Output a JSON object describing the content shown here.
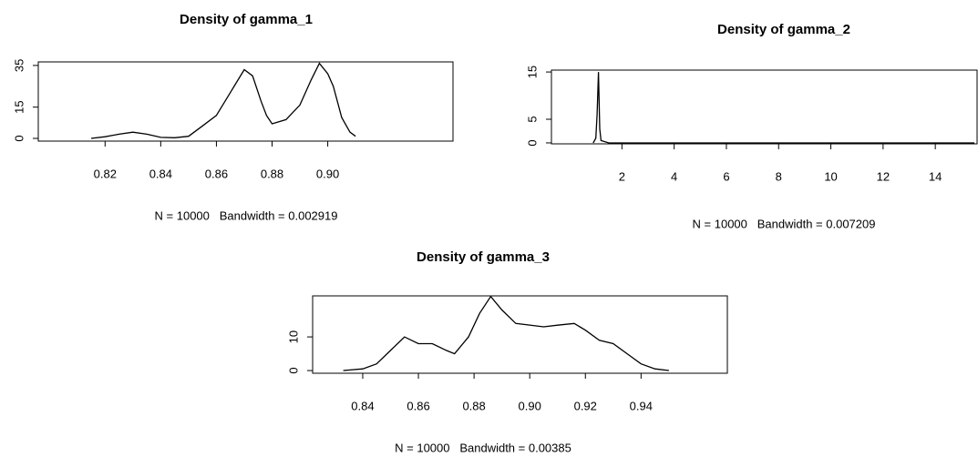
{
  "chart_data": [
    {
      "type": "line",
      "title": "Density of gamma_1",
      "subtitle": "N = 10000   Bandwidth = 0.002919",
      "x": [
        0.815,
        0.82,
        0.825,
        0.83,
        0.835,
        0.84,
        0.845,
        0.85,
        0.855,
        0.86,
        0.865,
        0.87,
        0.873,
        0.876,
        0.878,
        0.88,
        0.885,
        0.89,
        0.894,
        0.897,
        0.9,
        0.902,
        0.905,
        0.908,
        0.91
      ],
      "values": [
        0,
        0.8,
        2,
        3,
        2,
        0.5,
        0.3,
        1,
        6,
        11,
        22,
        33,
        30,
        18,
        11,
        7,
        9,
        16,
        28,
        36,
        31,
        25,
        10,
        3,
        1
      ],
      "color": "#000000",
      "xlim": [
        0.796,
        0.945
      ],
      "ylim": [
        -1.3,
        36.7
      ],
      "xticks": [
        0.82,
        0.84,
        0.86,
        0.88,
        {
          "value": 0.9,
          "label": "0.90"
        }
      ],
      "yticks": [
        0,
        15,
        35
      ]
    },
    {
      "type": "line",
      "title": "Density of gamma_2",
      "subtitle": "N = 10000   Bandwidth = 0.007209",
      "x": [
        0.9,
        1.0,
        1.05,
        1.1,
        1.15,
        1.2,
        1.5,
        15.5
      ],
      "values": [
        0,
        1,
        6,
        15,
        3,
        0.5,
        0,
        0
      ],
      "color": "#000000",
      "xlim": [
        -0.7,
        15.6
      ],
      "ylim": [
        -0.2,
        15.4
      ],
      "xticks": [
        2,
        4,
        6,
        8,
        10,
        12,
        14
      ],
      "yticks": [
        0,
        5,
        15
      ]
    },
    {
      "type": "line",
      "title": "Density of gamma_3",
      "subtitle": "N = 10000   Bandwidth = 0.00385",
      "x": [
        0.833,
        0.84,
        0.845,
        0.85,
        0.855,
        0.86,
        0.865,
        0.87,
        0.873,
        0.878,
        0.882,
        0.886,
        0.89,
        0.895,
        0.905,
        0.91,
        0.916,
        0.92,
        0.925,
        0.93,
        0.935,
        0.94,
        0.945,
        0.95
      ],
      "values": [
        0,
        0.5,
        2,
        6,
        10,
        8,
        8,
        6,
        5,
        10,
        17,
        22,
        18,
        14,
        13,
        13.5,
        14,
        12,
        9,
        8,
        5,
        2,
        0.5,
        0
      ],
      "color": "#000000",
      "xlim": [
        0.822,
        0.971
      ],
      "ylim": [
        -0.8,
        22.2
      ],
      "xticks": [
        0.84,
        0.86,
        0.88,
        {
          "value": 0.9,
          "label": "0.90"
        },
        0.92,
        0.94
      ],
      "yticks": [
        0,
        10
      ]
    }
  ]
}
